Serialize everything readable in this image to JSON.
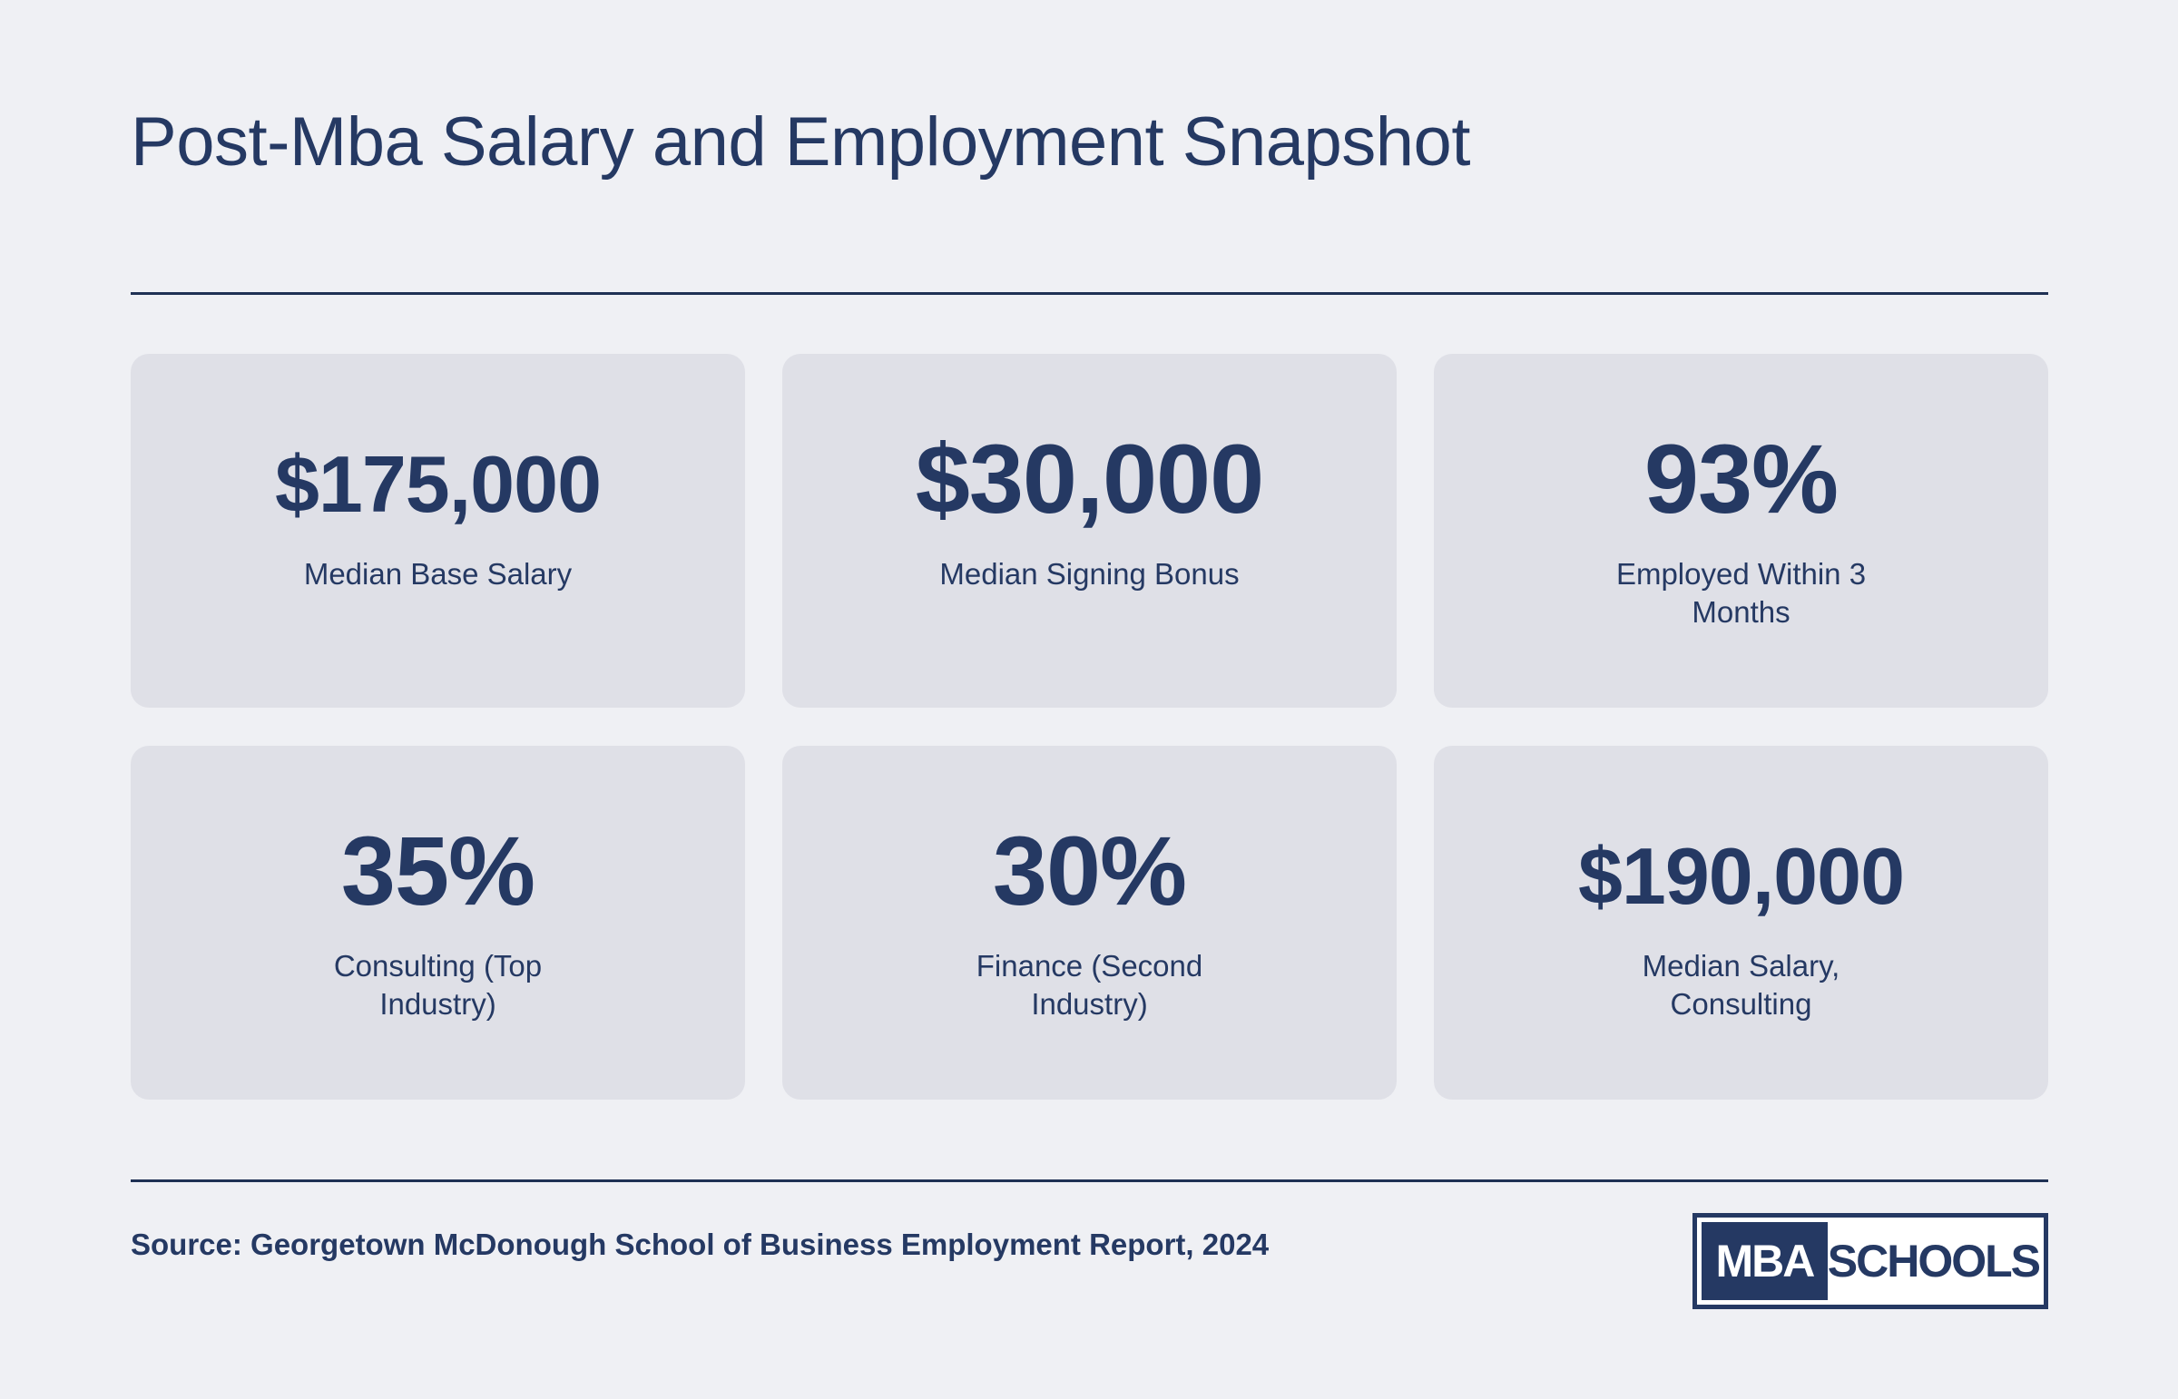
{
  "title": "Post-Mba Salary and Employment Snapshot",
  "stats": [
    {
      "value": "$175,000",
      "label": "Median Base Salary"
    },
    {
      "value": "$30,000",
      "label": "Median Signing Bonus"
    },
    {
      "value": "93%",
      "label": "Employed Within 3 Months"
    },
    {
      "value": "35%",
      "label": "Consulting (Top Industry)"
    },
    {
      "value": "30%",
      "label": "Finance (Second Industry)"
    },
    {
      "value": "$190,000",
      "label": "Median Salary, Consulting"
    }
  ],
  "source": "Source: Georgetown McDonough School of Business Employment Report, 2024",
  "logo": {
    "left_text": "MBA",
    "right_text": "SCHOOLS",
    "color": "#253963"
  },
  "colors": {
    "background": "#eff0f4",
    "card": "#dfe0e7",
    "text": "#253963"
  }
}
